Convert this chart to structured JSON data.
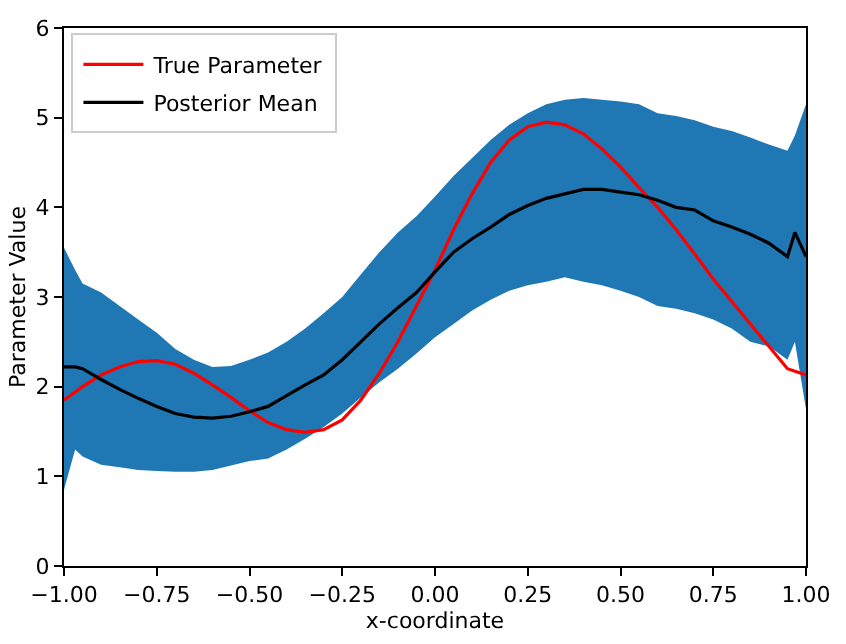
{
  "chart_data": {
    "type": "line",
    "xlabel": "x-coordinate",
    "ylabel": "Parameter Value",
    "xlim": [
      -1,
      1
    ],
    "ylim": [
      0,
      6
    ],
    "xticks": [
      {
        "value": -1,
        "label": "−1.00"
      },
      {
        "value": -0.75,
        "label": "−0.75"
      },
      {
        "value": -0.5,
        "label": "−0.50"
      },
      {
        "value": -0.25,
        "label": "−0.25"
      },
      {
        "value": 0,
        "label": "0.00"
      },
      {
        "value": 0.25,
        "label": "0.25"
      },
      {
        "value": 0.5,
        "label": "0.50"
      },
      {
        "value": 0.75,
        "label": "0.75"
      },
      {
        "value": 1,
        "label": "1.00"
      }
    ],
    "yticks": [
      0,
      1,
      2,
      3,
      4,
      5,
      6
    ],
    "legend": "top left",
    "line_style": "solid",
    "series": [
      {
        "name": "True Parameter",
        "color": "#ff0000",
        "x": [
          -1,
          -0.95,
          -0.9,
          -0.85,
          -0.8,
          -0.75,
          -0.7,
          -0.65,
          -0.6,
          -0.55,
          -0.5,
          -0.45,
          -0.4,
          -0.35,
          -0.3,
          -0.25,
          -0.2,
          -0.15,
          -0.1,
          -0.05,
          0,
          0.05,
          0.1,
          0.15,
          0.2,
          0.25,
          0.3,
          0.35,
          0.4,
          0.45,
          0.5,
          0.55,
          0.6,
          0.65,
          0.7,
          0.75,
          0.8,
          0.85,
          0.9,
          0.95,
          1.0
        ],
        "values": [
          1.85,
          2.0,
          2.13,
          2.22,
          2.28,
          2.29,
          2.25,
          2.15,
          2.02,
          1.88,
          1.73,
          1.6,
          1.52,
          1.49,
          1.52,
          1.63,
          1.85,
          2.15,
          2.5,
          2.9,
          3.3,
          3.75,
          4.15,
          4.5,
          4.75,
          4.9,
          4.95,
          4.92,
          4.82,
          4.65,
          4.45,
          4.22,
          4.0,
          3.75,
          3.48,
          3.2,
          2.95,
          2.7,
          2.45,
          2.2,
          2.13
        ]
      },
      {
        "name": "Posterior Mean",
        "color": "#000000",
        "x": [
          -1,
          -0.97,
          -0.95,
          -0.9,
          -0.85,
          -0.8,
          -0.75,
          -0.7,
          -0.65,
          -0.6,
          -0.55,
          -0.5,
          -0.45,
          -0.4,
          -0.35,
          -0.3,
          -0.25,
          -0.2,
          -0.15,
          -0.1,
          -0.05,
          0,
          0.05,
          0.1,
          0.15,
          0.2,
          0.25,
          0.3,
          0.35,
          0.4,
          0.45,
          0.5,
          0.55,
          0.6,
          0.65,
          0.7,
          0.75,
          0.8,
          0.85,
          0.9,
          0.95,
          0.97,
          1.0
        ],
        "values": [
          2.22,
          2.22,
          2.2,
          2.08,
          1.97,
          1.87,
          1.78,
          1.7,
          1.66,
          1.65,
          1.67,
          1.72,
          1.78,
          1.9,
          2.02,
          2.13,
          2.3,
          2.5,
          2.7,
          2.88,
          3.05,
          3.28,
          3.5,
          3.65,
          3.78,
          3.92,
          4.02,
          4.1,
          4.15,
          4.2,
          4.2,
          4.17,
          4.14,
          4.08,
          4.0,
          3.97,
          3.85,
          3.78,
          3.7,
          3.6,
          3.45,
          3.72,
          3.45
        ],
        "upper": [
          3.55,
          3.3,
          3.15,
          3.05,
          2.9,
          2.75,
          2.6,
          2.42,
          2.3,
          2.22,
          2.23,
          2.3,
          2.38,
          2.5,
          2.65,
          2.82,
          3.0,
          3.25,
          3.5,
          3.72,
          3.9,
          4.12,
          4.35,
          4.55,
          4.75,
          4.92,
          5.05,
          5.15,
          5.2,
          5.22,
          5.2,
          5.18,
          5.15,
          5.05,
          5.02,
          4.97,
          4.9,
          4.85,
          4.78,
          4.7,
          4.63,
          4.8,
          5.15
        ],
        "lower": [
          0.85,
          1.3,
          1.22,
          1.13,
          1.1,
          1.07,
          1.06,
          1.05,
          1.05,
          1.07,
          1.12,
          1.17,
          1.2,
          1.3,
          1.42,
          1.55,
          1.7,
          1.88,
          2.05,
          2.2,
          2.37,
          2.55,
          2.7,
          2.85,
          2.97,
          3.07,
          3.13,
          3.17,
          3.22,
          3.17,
          3.13,
          3.07,
          3.0,
          2.9,
          2.87,
          2.82,
          2.75,
          2.65,
          2.5,
          2.45,
          2.3,
          2.5,
          1.75
        ]
      }
    ]
  }
}
